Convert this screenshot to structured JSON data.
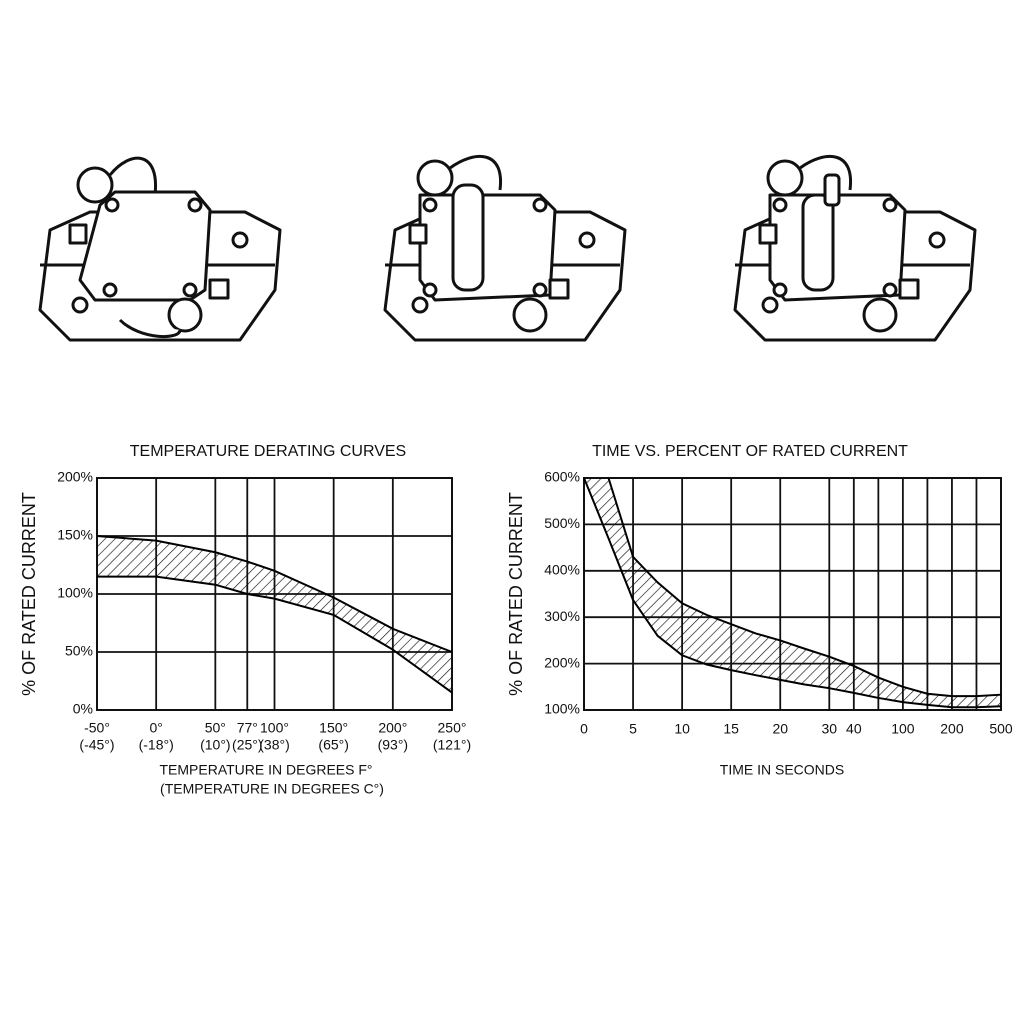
{
  "chart_data": [
    {
      "type": "band",
      "title": "TEMPERATURE DERATING CURVES",
      "ylabel": "% OF RATED CURRENT",
      "xlabel": "TEMPERATURE IN DEGREES F°",
      "xlabel2": "(TEMPERATURE IN DEGREES C°)",
      "x": [
        -50,
        0,
        50,
        77,
        100,
        150,
        200,
        250
      ],
      "series": [
        {
          "color": "#000000",
          "values": [
            150,
            146,
            136,
            128,
            120,
            97,
            70,
            50
          ]
        },
        {
          "color": "#000000",
          "values": [
            115,
            115,
            108,
            100,
            96,
            82,
            52,
            15
          ]
        }
      ],
      "xlim": [
        -50,
        250
      ],
      "xticks": [
        {
          "value": -50,
          "label": "-50°"
        },
        {
          "value": 0,
          "label": "0°"
        },
        {
          "value": 50,
          "label": "50°"
        },
        {
          "value": 77,
          "label": "77°"
        },
        {
          "value": 100,
          "label": "100°"
        },
        {
          "value": 150,
          "label": "150°"
        },
        {
          "value": 200,
          "label": "200°"
        },
        {
          "value": 250,
          "label": "250°"
        }
      ],
      "xtick_sublabels": [
        "(-45°)",
        "(-18°)",
        "(10°)",
        "(25°)",
        "(38°)",
        "(65°)",
        "(93°)",
        "(121°)"
      ],
      "ylim": [
        0,
        200
      ],
      "yticks": [
        {
          "value": 0,
          "label": "0%"
        },
        {
          "value": 50,
          "label": "50%"
        },
        {
          "value": 100,
          "label": "100%"
        },
        {
          "value": 150,
          "label": "150%"
        },
        {
          "value": 200,
          "label": "200%"
        }
      ],
      "grid": true,
      "hatch": true
    },
    {
      "type": "band",
      "title": "TIME VS. PERCENT OF RATED CURRENT",
      "ylabel": "% OF RATED CURRENT",
      "xlabel": "TIME IN SECONDS",
      "categories": [
        "0",
        null,
        "5",
        null,
        "10",
        null,
        "15",
        null,
        "20",
        null,
        "30",
        "40",
        null,
        "100",
        null,
        "200",
        null,
        "500"
      ],
      "series": [
        {
          "color": "#000000",
          "values": [
            null,
            600,
            430,
            375,
            330,
            305,
            285,
            265,
            250,
            232,
            215,
            195,
            170,
            150,
            135,
            130,
            130,
            133
          ]
        },
        {
          "color": "#000000",
          "values": [
            600,
            470,
            337,
            260,
            218,
            198,
            186,
            175,
            165,
            155,
            147,
            137,
            126,
            117,
            111,
            106,
            106,
            108
          ]
        }
      ],
      "ylim": [
        100,
        600
      ],
      "yticks": [
        {
          "value": 100,
          "label": "100%"
        },
        {
          "value": 200,
          "label": "200%"
        },
        {
          "value": 300,
          "label": "300%"
        },
        {
          "value": 400,
          "label": "400%"
        },
        {
          "value": 500,
          "label": "500%"
        },
        {
          "value": 600,
          "label": "600%"
        }
      ],
      "grid": true,
      "hatch": true
    }
  ]
}
